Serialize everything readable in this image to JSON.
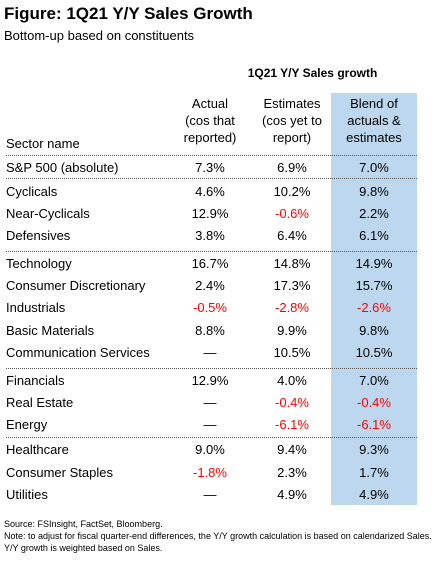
{
  "title": "Figure: 1Q21 Y/Y Sales Growth",
  "subtitle": "Bottom-up based on constituents",
  "table": {
    "group_header": "1Q21 Y/Y Sales growth",
    "sector_header": "Sector name",
    "col_actual": [
      "Actual",
      "(cos that",
      "reported)"
    ],
    "col_estimates": [
      "Estimates",
      "(cos yet to",
      "report)"
    ],
    "col_blend": [
      "Blend of",
      "actuals &",
      "estimates"
    ],
    "highlight_color": "#bdd7ee",
    "negative_color": "#ff0000",
    "rows": [
      {
        "name": "S&P 500 (absolute)",
        "actual": "7.3%",
        "estimates": "6.9%",
        "blend": "7.0%"
      },
      {
        "name": "Cyclicals",
        "actual": "4.6%",
        "estimates": "10.2%",
        "blend": "9.8%"
      },
      {
        "name": "Near-Cyclicals",
        "actual": "12.9%",
        "estimates": "-0.6%",
        "blend": "2.2%"
      },
      {
        "name": "Defensives",
        "actual": "3.8%",
        "estimates": "6.4%",
        "blend": "6.1%"
      },
      {
        "name": "Technology",
        "actual": "16.7%",
        "estimates": "14.8%",
        "blend": "14.9%"
      },
      {
        "name": "Consumer Discretionary",
        "actual": "2.4%",
        "estimates": "17.3%",
        "blend": "15.7%"
      },
      {
        "name": "Industrials",
        "actual": "-0.5%",
        "estimates": "-2.8%",
        "blend": "-2.6%"
      },
      {
        "name": "Basic Materials",
        "actual": "8.8%",
        "estimates": "9.9%",
        "blend": "9.8%"
      },
      {
        "name": "Communication Services",
        "actual": "—",
        "estimates": "10.5%",
        "blend": "10.5%"
      },
      {
        "name": "Financials",
        "actual": "12.9%",
        "estimates": "4.0%",
        "blend": "7.0%"
      },
      {
        "name": "Real Estate",
        "actual": "—",
        "estimates": "-0.4%",
        "blend": "-0.4%"
      },
      {
        "name": "Energy",
        "actual": "—",
        "estimates": "-6.1%",
        "blend": "-6.1%"
      },
      {
        "name": "Healthcare",
        "actual": "9.0%",
        "estimates": "9.4%",
        "blend": "9.3%"
      },
      {
        "name": "Consumer Staples",
        "actual": "-1.8%",
        "estimates": "2.3%",
        "blend": "1.7%"
      },
      {
        "name": "Utilities",
        "actual": "—",
        "estimates": "4.9%",
        "blend": "4.9%"
      }
    ]
  },
  "notes": {
    "source": "Source: FSInsight, FactSet, Bloomberg.",
    "note": "Note: to adjust for fiscal quarter-end differences, the Y/Y growth calculation is based on calendarized Sales. Y/Y growth is weighted based on Sales."
  }
}
